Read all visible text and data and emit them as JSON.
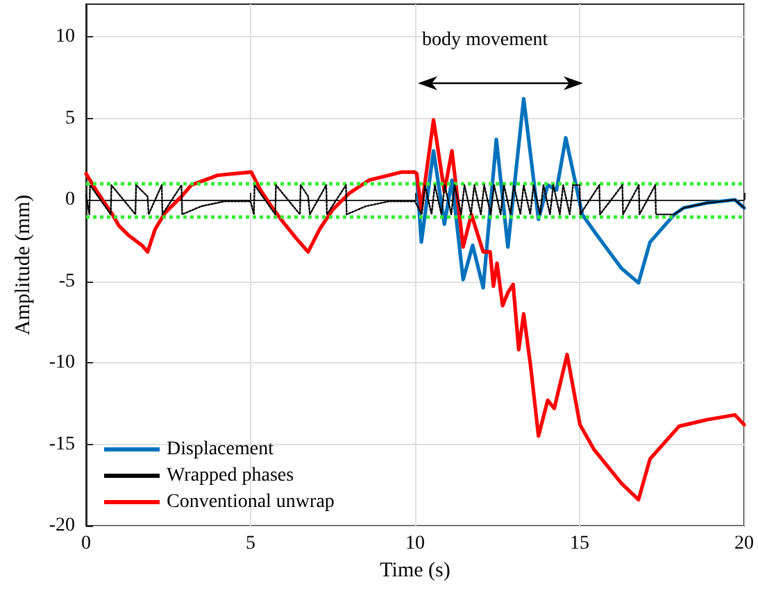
{
  "chart_data": {
    "type": "line",
    "xlabel": "Time (s)",
    "ylabel": "Amplitude (mm)",
    "xlim": [
      0,
      20
    ],
    "xticks": [
      0,
      5,
      10,
      15,
      20
    ],
    "ylim": [
      -20,
      12
    ],
    "yticks": [
      -20,
      -15,
      -10,
      -5,
      0,
      5,
      10
    ],
    "grid": true,
    "legend": "bottom left",
    "marker": "none",
    "annotations": [
      "body movement"
    ],
    "ref_lines": [
      {
        "axis": "y",
        "value": 1,
        "label": null,
        "color": "#33ee33",
        "line_style": "dotted"
      },
      {
        "axis": "y",
        "value": -1,
        "label": null,
        "color": "#33ee33",
        "line_style": "dotted"
      }
    ],
    "series": [
      {
        "name": "Displacement",
        "color": "#0072bd",
        "line_style": "solid",
        "x": [
          9.98,
          10.05,
          10.19,
          10.56,
          10.89,
          11.12,
          11.46,
          11.75,
          12.07,
          12.47,
          12.82,
          13.3,
          13.75,
          14.03,
          14.3,
          14.58,
          15.08,
          15.5,
          16.27,
          16.79,
          17.14,
          17.88,
          18.16,
          18.86,
          19.72,
          20.0
        ],
        "values": [
          1.7,
          1.6,
          -2.6,
          3.0,
          -1.5,
          1.2,
          -4.9,
          -2.8,
          -5.4,
          3.7,
          -2.9,
          6.2,
          -1.2,
          0.9,
          0.6,
          3.8,
          -0.9,
          -2.1,
          -4.2,
          -5.1,
          -2.6,
          -0.9,
          -0.5,
          -0.2,
          0.0,
          -0.5
        ]
      },
      {
        "name": "Wrapped phases",
        "color": "#000000",
        "line_style": "dotted",
        "x": [
          0,
          0.1,
          0.12,
          0.75,
          0.77,
          1.5,
          1.52,
          1.87,
          1.9,
          2.3,
          2.32,
          2.9,
          2.92,
          3.5,
          4.2,
          5.0,
          5.1,
          5.12,
          5.75,
          5.77,
          6.5,
          6.52,
          6.75,
          6.8,
          7.3,
          7.32,
          7.9,
          7.92,
          8.5,
          9.2,
          10.0,
          10.2,
          10.3,
          10.5,
          10.6,
          10.8,
          10.9,
          11.1,
          11.2,
          11.4,
          11.5,
          11.7,
          11.8,
          12.0,
          12.1,
          12.3,
          12.4,
          12.6,
          12.7,
          12.9,
          13.0,
          13.2,
          13.3,
          13.5,
          13.6,
          13.8,
          13.9,
          14.1,
          14.2,
          14.4,
          14.5,
          14.7,
          14.8,
          15.0,
          15.02,
          15.6,
          15.62,
          16.3,
          16.32,
          16.8,
          16.82,
          17.3,
          17.32,
          17.88,
          18.16,
          18.86,
          19.72,
          20.0
        ],
        "values": [
          0.3,
          -0.9,
          0.9,
          -0.9,
          0.9,
          -0.9,
          0.9,
          0.2,
          -0.9,
          0.9,
          -0.9,
          0.9,
          -0.9,
          -0.4,
          -0.1,
          -0.1,
          -0.9,
          0.9,
          -0.9,
          0.9,
          -0.9,
          0.9,
          0.2,
          -0.9,
          0.9,
          -0.9,
          0.9,
          -0.9,
          -0.4,
          -0.1,
          -0.1,
          -0.9,
          0.9,
          -0.9,
          0.9,
          -0.9,
          0.9,
          -0.9,
          0.9,
          -0.9,
          0.9,
          -0.9,
          0.9,
          -0.9,
          0.9,
          -0.9,
          0.9,
          -0.9,
          0.9,
          -0.9,
          0.9,
          -0.9,
          0.9,
          -0.9,
          0.9,
          -0.9,
          0.9,
          -0.9,
          0.9,
          -0.9,
          0.9,
          -0.9,
          0.9,
          0.9,
          -0.9,
          0.9,
          -0.9,
          0.9,
          -0.9,
          0.9,
          -0.9,
          0.9,
          -0.9,
          -0.9,
          -0.5,
          -0.2,
          0.0,
          -0.5
        ]
      },
      {
        "name": "Conventional unwrap",
        "color": "#ff0000",
        "line_style": "solid",
        "x": [
          0,
          0.3,
          0.8,
          1.0,
          1.3,
          1.7,
          1.87,
          2.1,
          2.4,
          2.9,
          3.2,
          3.6,
          4.0,
          4.5,
          5.02,
          5.3,
          5.7,
          6.0,
          6.4,
          6.75,
          7.1,
          7.5,
          8.0,
          8.6,
          9.2,
          9.6,
          9.98,
          10.05,
          10.19,
          10.56,
          10.89,
          11.12,
          11.46,
          11.71,
          12.07,
          12.28,
          12.38,
          12.49,
          12.66,
          12.82,
          12.98,
          13.15,
          13.3,
          13.51,
          13.75,
          14.03,
          14.23,
          14.62,
          15.01,
          15.43,
          16.27,
          16.79,
          17.14,
          18.02,
          18.86,
          19.72,
          20.0
        ],
        "values": [
          1.6,
          0.6,
          -0.9,
          -1.6,
          -2.2,
          -2.8,
          -3.2,
          -1.8,
          -0.8,
          0.2,
          0.9,
          1.2,
          1.5,
          1.6,
          1.7,
          0.6,
          -0.6,
          -1.4,
          -2.4,
          -3.2,
          -1.8,
          -0.6,
          0.4,
          1.2,
          1.5,
          1.7,
          1.7,
          1.6,
          -0.6,
          4.9,
          0.5,
          3.0,
          -2.9,
          -0.9,
          -3.2,
          -3.2,
          -5.3,
          -3.9,
          -6.5,
          -5.7,
          -5.2,
          -9.2,
          -7.0,
          -10.2,
          -14.5,
          -12.3,
          -12.8,
          -9.5,
          -13.8,
          -15.3,
          -17.4,
          -18.4,
          -15.9,
          -13.9,
          -13.5,
          -13.2,
          -13.8
        ]
      }
    ]
  }
}
